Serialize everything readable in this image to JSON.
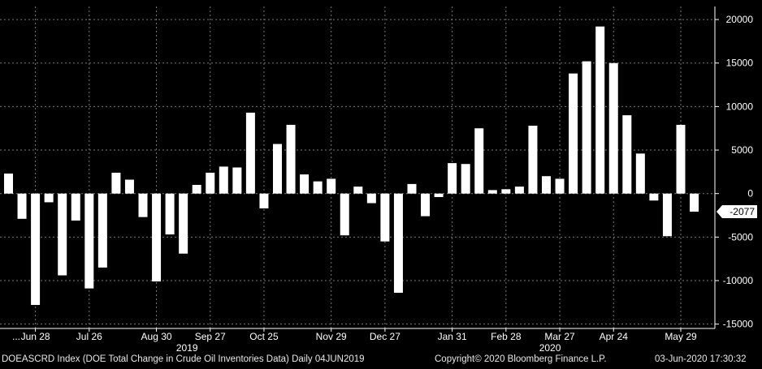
{
  "chart_data": {
    "type": "bar",
    "grid": true,
    "ylim": [
      -15500,
      21500
    ],
    "y_ticks": [
      20000,
      15000,
      10000,
      5000,
      0,
      -5000,
      -10000,
      -15000
    ],
    "y_tick_labels": [
      "20000",
      "15000",
      "10000",
      "5000",
      "0",
      "-5000",
      "-10000",
      "-15000"
    ],
    "x_ticks": [
      {
        "label": "...",
        "after_index": -1
      },
      {
        "label": "Jun 28",
        "index": 2
      },
      {
        "label": "Jul 26",
        "index": 6
      },
      {
        "label": "Aug 30",
        "index": 11
      },
      {
        "label": "Sep 27",
        "index": 15
      },
      {
        "label": "Oct 25",
        "index": 19
      },
      {
        "label": "Nov 29",
        "index": 24
      },
      {
        "label": "Dec 27",
        "index": 28
      },
      {
        "label": "Jan 31",
        "index": 33
      },
      {
        "label": "Feb 28",
        "index": 37
      },
      {
        "label": "Mar 27",
        "index": 41
      },
      {
        "label": "Apr 24",
        "index": 45
      },
      {
        "label": "May 29",
        "index": 50
      }
    ],
    "years": [
      {
        "label": "2019",
        "index": 14
      },
      {
        "label": "2020",
        "index": 41
      }
    ],
    "values": [
      2300,
      -2900,
      -12800,
      -1000,
      -9400,
      -3100,
      -10900,
      -8500,
      2400,
      1600,
      -2700,
      -10100,
      -4700,
      -6900,
      1000,
      2400,
      3100,
      3000,
      9300,
      -1700,
      5700,
      7900,
      2200,
      1400,
      1700,
      -4800,
      800,
      -1100,
      -5500,
      -11400,
      1100,
      -2600,
      -400,
      3500,
      3400,
      7500,
      400,
      500,
      800,
      7800,
      2000,
      1700,
      13800,
      15200,
      19200,
      15000,
      9000,
      4600,
      -800,
      -4900,
      7900,
      -2077
    ],
    "last_value_label": "-2077",
    "bar_color": "#ffffff",
    "grid_color": "#7a7a7a"
  },
  "footer": {
    "index_info": "DOEASCRD Index (DOE Total Change in Crude Oil Inventories Data)  Daily 04JUN2019",
    "copyright": "Copyright© 2020 Bloomberg Finance L.P.",
    "timestamp": "03-Jun-2020 17:30:32"
  }
}
